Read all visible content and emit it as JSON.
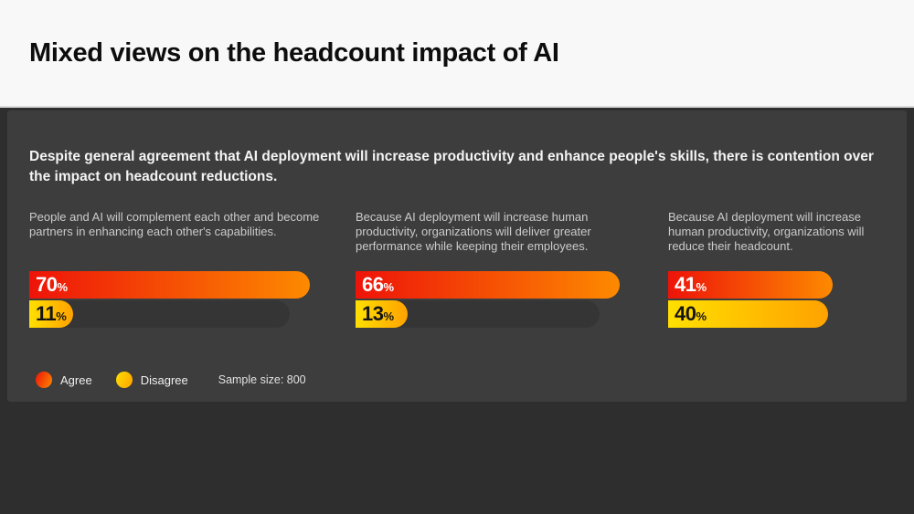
{
  "header": {
    "title": "Mixed views on the headcount impact of AI"
  },
  "subtitle": "Despite general agreement that AI deployment will increase productivity and enhance people's skills, there is contention over the impact on headcount reductions.",
  "legend": {
    "agree_label": "Agree",
    "disagree_label": "Disagree",
    "sample_size": "Sample size: 800"
  },
  "colors": {
    "agree_start": "#ee1309",
    "agree_end": "#fd8a00",
    "disagree_start": "#ffdf00",
    "disagree_end": "#ffa200",
    "header_bg": "#f8f8f8",
    "card_bg": "#3d3d3d",
    "page_bg": "#2e2e2e"
  },
  "chart_data": {
    "type": "bar",
    "orientation": "horizontal",
    "unit": "%",
    "xlim": [
      0,
      100
    ],
    "grid": false,
    "legend_position": "bottom-left",
    "categories": [
      "People and AI will complement each other and become partners in enhancing each other's capabilities.",
      "Because AI deployment will increase human productivity, organizations will deliver greater performance while keeping their employees.",
      "Because AI deployment will increase human productivity, organizations will reduce their headcount."
    ],
    "series": [
      {
        "name": "Agree",
        "values": [
          70,
          66,
          41
        ]
      },
      {
        "name": "Disagree",
        "values": [
          11,
          13,
          40
        ]
      }
    ],
    "sample_size": 800
  }
}
